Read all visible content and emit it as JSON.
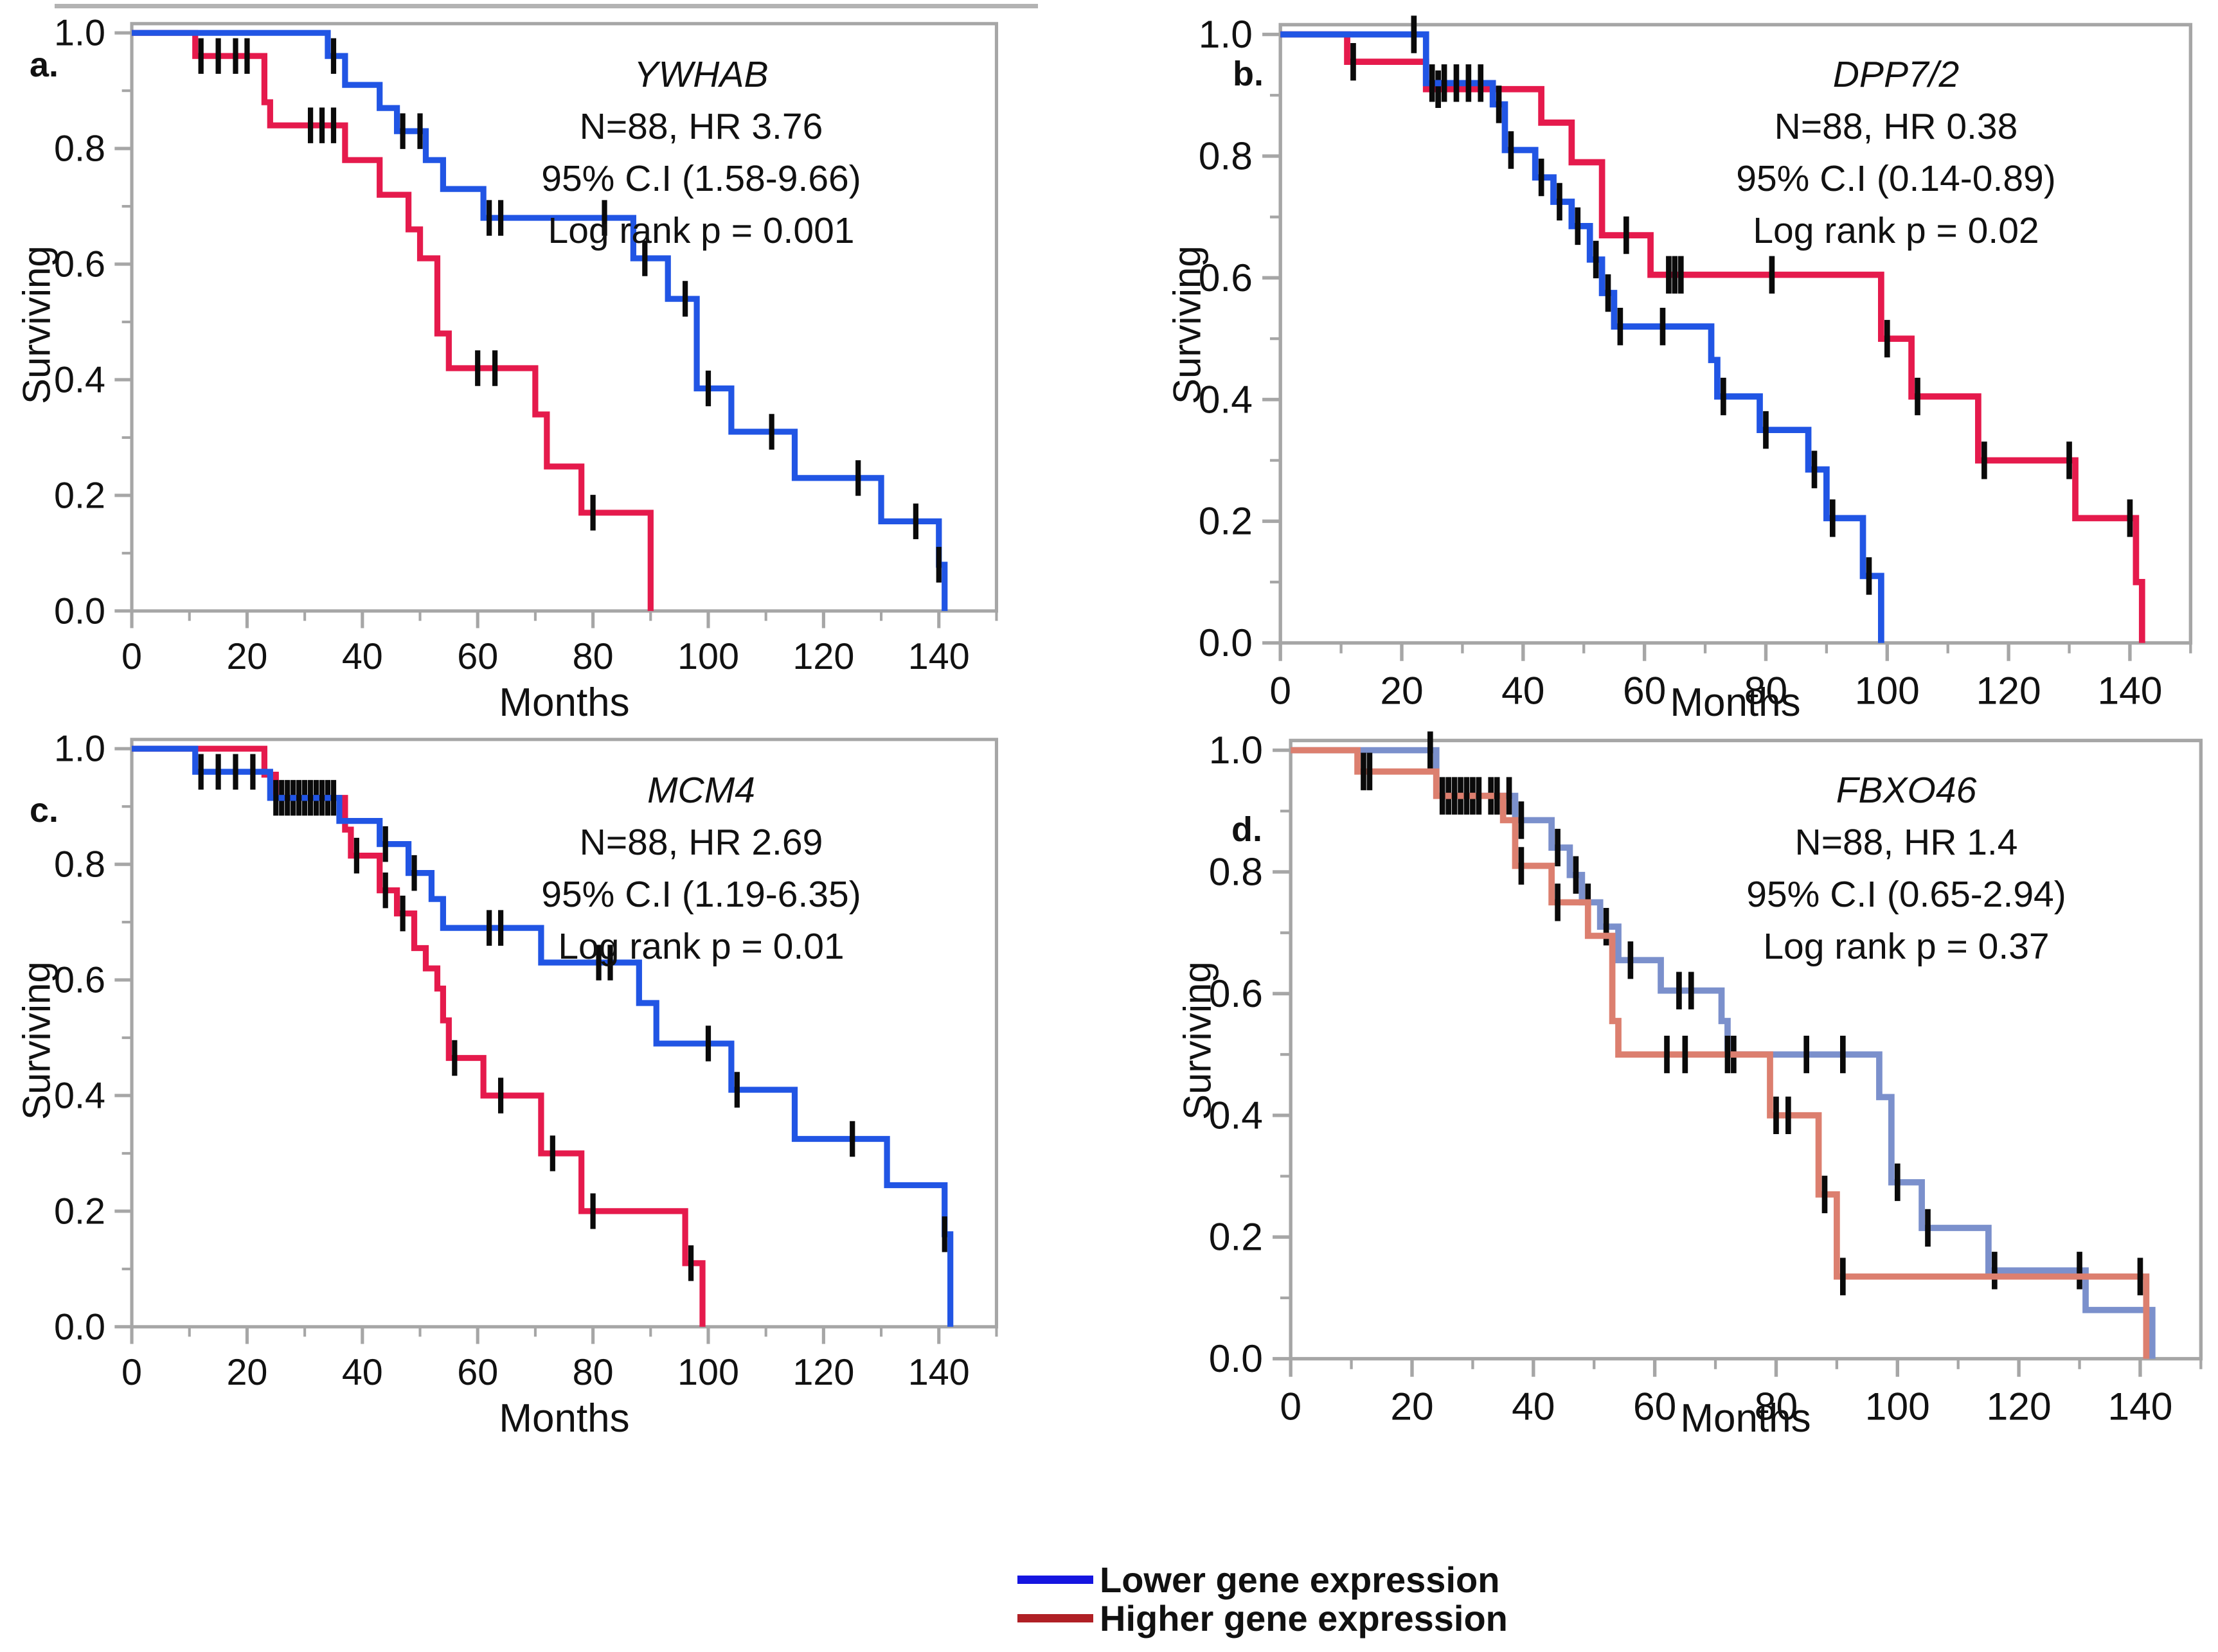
{
  "style": {
    "background": "#ffffff",
    "axis_color": "#a6a6a6",
    "censor_color": "#0a0a0a",
    "bright_blue": "#2155e4",
    "bright_red": "#e51a4c",
    "muted_blue": "#7b90cc",
    "muted_red": "#dc7f6f"
  },
  "axes": {
    "x": {
      "label": "Months",
      "min": 0,
      "max": 150,
      "major": [
        {
          "v": 0,
          "label": "0"
        },
        {
          "v": 20,
          "label": "20"
        },
        {
          "v": 40,
          "label": "40"
        },
        {
          "v": 60,
          "label": "60"
        },
        {
          "v": 80,
          "label": "80"
        },
        {
          "v": 100,
          "label": "100"
        },
        {
          "v": 120,
          "label": "120"
        },
        {
          "v": 140,
          "label": "140"
        }
      ],
      "minor": [
        10,
        30,
        50,
        70,
        90,
        110,
        130,
        150
      ]
    },
    "y": {
      "label": "Surviving",
      "min": 0,
      "max": 1,
      "major": [
        {
          "v": 0,
          "label": "0.0"
        },
        {
          "v": 0.2,
          "label": "0.2"
        },
        {
          "v": 0.4,
          "label": "0.4"
        },
        {
          "v": 0.6,
          "label": "0.6"
        },
        {
          "v": 0.8,
          "label": "0.8"
        },
        {
          "v": 1,
          "label": "1.0"
        }
      ],
      "minor": [
        0.1,
        0.3,
        0.5,
        0.7,
        0.9
      ]
    }
  },
  "legend": {
    "items": [
      {
        "label": "Lower gene expression",
        "color": "#1515e0"
      },
      {
        "label": "Higher gene expression",
        "color": "#b02025"
      }
    ]
  },
  "chart_data": [
    {
      "type": "line",
      "panel_label": "a.",
      "title": "YWHAB",
      "annotations": [
        "N=88, HR 3.76",
        "95% C.I (1.58-9.66)",
        "Log rank p = 0.001"
      ],
      "xlabel": "Months",
      "ylabel": "Surviving",
      "xlim": [
        0,
        150
      ],
      "ylim": [
        0,
        1
      ],
      "series": [
        {
          "name": "Higher gene expression",
          "color": "#e51a4c",
          "points": [
            [
              0,
              1
            ],
            [
              11,
              0.96
            ],
            [
              23,
              0.88
            ],
            [
              24,
              0.84
            ],
            [
              37,
              0.78
            ],
            [
              43,
              0.72
            ],
            [
              48,
              0.66
            ],
            [
              50,
              0.61
            ],
            [
              53,
              0.48
            ],
            [
              55,
              0.42
            ],
            [
              70,
              0.34
            ],
            [
              72,
              0.25
            ],
            [
              78,
              0.17
            ],
            [
              90,
              0
            ]
          ],
          "censors": [
            12,
            15,
            18,
            20,
            31,
            33,
            35,
            60,
            63,
            80
          ]
        },
        {
          "name": "Lower gene expression",
          "color": "#2155e4",
          "points": [
            [
              0,
              1
            ],
            [
              34,
              0.96
            ],
            [
              37,
              0.91
            ],
            [
              43,
              0.87
            ],
            [
              46,
              0.83
            ],
            [
              51,
              0.78
            ],
            [
              54,
              0.73
            ],
            [
              61,
              0.68
            ],
            [
              87,
              0.61
            ],
            [
              93,
              0.54
            ],
            [
              98,
              0.385
            ],
            [
              104,
              0.31
            ],
            [
              115,
              0.23
            ],
            [
              130,
              0.155
            ],
            [
              140,
              0.08
            ],
            [
              141,
              0
            ]
          ],
          "censors": [
            35,
            47,
            50,
            62,
            64,
            82,
            89,
            96,
            100,
            111,
            126,
            136,
            140
          ]
        }
      ]
    },
    {
      "type": "line",
      "panel_label": "b.",
      "title": "DPP7/2",
      "annotations": [
        "N=88, HR 0.38",
        "95% C.I (0.14-0.89)",
        "Log rank p = 0.02"
      ],
      "xlabel": "Months",
      "ylabel": "Surviving",
      "xlim": [
        0,
        150
      ],
      "ylim": [
        0,
        1
      ],
      "series": [
        {
          "name": "Higher gene expression",
          "color": "#e51a4c",
          "points": [
            [
              0,
              1
            ],
            [
              11,
              0.955
            ],
            [
              24,
              0.91
            ],
            [
              43,
              0.855
            ],
            [
              48,
              0.79
            ],
            [
              53,
              0.67
            ],
            [
              61,
              0.605
            ],
            [
              99,
              0.5
            ],
            [
              104,
              0.405
            ],
            [
              115,
              0.3
            ],
            [
              131,
              0.205
            ],
            [
              141,
              0.1
            ],
            [
              142,
              0
            ]
          ],
          "censors": [
            12,
            26,
            57,
            64,
            65,
            66,
            81,
            100,
            105,
            116,
            130,
            140
          ]
        },
        {
          "name": "Lower gene expression",
          "color": "#2155e4",
          "points": [
            [
              0,
              1
            ],
            [
              24,
              0.92
            ],
            [
              35,
              0.885
            ],
            [
              37,
              0.81
            ],
            [
              42,
              0.765
            ],
            [
              45,
              0.725
            ],
            [
              48,
              0.685
            ],
            [
              51,
              0.63
            ],
            [
              53,
              0.575
            ],
            [
              55,
              0.52
            ],
            [
              71,
              0.465
            ],
            [
              72,
              0.405
            ],
            [
              79,
              0.35
            ],
            [
              87,
              0.285
            ],
            [
              90,
              0.205
            ],
            [
              96,
              0.11
            ],
            [
              99,
              0
            ]
          ],
          "censors": [
            22,
            25,
            27,
            29,
            31,
            33,
            36,
            38,
            43,
            46,
            49,
            52,
            54,
            56,
            63,
            73,
            80,
            88,
            91,
            97
          ]
        }
      ]
    },
    {
      "type": "line",
      "panel_label": "c.",
      "title": "MCM4",
      "annotations": [
        "N=88, HR 2.69",
        "95% C.I (1.19-6.35)",
        "Log rank p = 0.01"
      ],
      "xlabel": "Months",
      "ylabel": "Surviving",
      "xlim": [
        0,
        150
      ],
      "ylim": [
        0,
        1
      ],
      "series": [
        {
          "name": "Higher gene expression",
          "color": "#e51a4c",
          "points": [
            [
              0,
              1
            ],
            [
              23,
              0.955
            ],
            [
              25,
              0.915
            ],
            [
              37,
              0.86
            ],
            [
              38,
              0.815
            ],
            [
              43,
              0.755
            ],
            [
              46,
              0.715
            ],
            [
              49,
              0.655
            ],
            [
              51,
              0.62
            ],
            [
              53,
              0.585
            ],
            [
              54,
              0.53
            ],
            [
              55,
              0.465
            ],
            [
              61,
              0.4
            ],
            [
              71,
              0.3
            ],
            [
              78,
              0.2
            ],
            [
              96,
              0.11
            ],
            [
              99,
              0
            ]
          ],
          "censors": [
            26,
            28,
            30,
            32,
            34,
            39,
            44,
            47,
            56,
            64,
            73,
            80,
            97
          ]
        },
        {
          "name": "Lower gene expression",
          "color": "#2155e4",
          "points": [
            [
              0,
              1
            ],
            [
              11,
              0.96
            ],
            [
              24,
              0.915
            ],
            [
              36,
              0.875
            ],
            [
              43,
              0.835
            ],
            [
              48,
              0.785
            ],
            [
              52,
              0.74
            ],
            [
              54,
              0.69
            ],
            [
              71,
              0.63
            ],
            [
              88,
              0.56
            ],
            [
              91,
              0.49
            ],
            [
              104,
              0.41
            ],
            [
              115,
              0.325
            ],
            [
              131,
              0.245
            ],
            [
              141,
              0.16
            ],
            [
              142,
              0
            ]
          ],
          "censors": [
            12,
            15,
            18,
            21,
            25,
            27,
            29,
            31,
            33,
            35,
            44,
            49,
            62,
            64,
            81,
            83,
            100,
            105,
            125,
            141
          ]
        }
      ]
    },
    {
      "type": "line",
      "panel_label": "d.",
      "title": "FBXO46",
      "annotations": [
        "N=88, HR 1.4",
        "95% C.I (0.65-2.94)",
        "Log rank p = 0.37"
      ],
      "xlabel": "Months",
      "ylabel": "Surviving",
      "xlim": [
        0,
        150
      ],
      "ylim": [
        0,
        1
      ],
      "series": [
        {
          "name": "Lower gene expression",
          "color": "#7b90cc",
          "points": [
            [
              0,
              1
            ],
            [
              24,
              0.925
            ],
            [
              37,
              0.885
            ],
            [
              43,
              0.84
            ],
            [
              46,
              0.795
            ],
            [
              48,
              0.75
            ],
            [
              51,
              0.71
            ],
            [
              54,
              0.655
            ],
            [
              61,
              0.605
            ],
            [
              71,
              0.555
            ],
            [
              72,
              0.5
            ],
            [
              97,
              0.43
            ],
            [
              99,
              0.29
            ],
            [
              104,
              0.215
            ],
            [
              115,
              0.145
            ],
            [
              131,
              0.08
            ],
            [
              142,
              0
            ]
          ],
          "censors": [
            23,
            26,
            28,
            30,
            33,
            36,
            38,
            44,
            47,
            49,
            52,
            56,
            64,
            66,
            73,
            85,
            91,
            100,
            105,
            116,
            130,
            141
          ]
        },
        {
          "name": "Higher gene expression",
          "color": "#dc7f6f",
          "points": [
            [
              0,
              1
            ],
            [
              11,
              0.965
            ],
            [
              24,
              0.925
            ],
            [
              35,
              0.885
            ],
            [
              37,
              0.81
            ],
            [
              43,
              0.75
            ],
            [
              49,
              0.695
            ],
            [
              53,
              0.555
            ],
            [
              54,
              0.5
            ],
            [
              79,
              0.4
            ],
            [
              87,
              0.27
            ],
            [
              90,
              0.135
            ],
            [
              141,
              0
            ]
          ],
          "censors": [
            12,
            13,
            25,
            27,
            29,
            31,
            34,
            38,
            44,
            62,
            65,
            72,
            80,
            82,
            88,
            91,
            140
          ]
        }
      ]
    }
  ]
}
